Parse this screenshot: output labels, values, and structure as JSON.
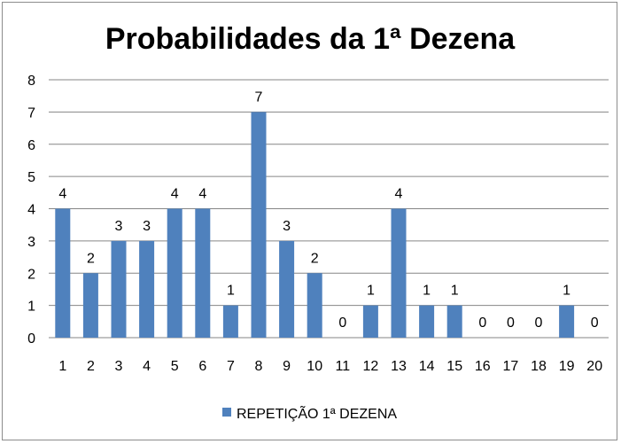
{
  "chart_data": {
    "type": "bar",
    "title": "Probabilidades da 1ª Dezena",
    "xlabel": "",
    "ylabel": "",
    "categories": [
      "1",
      "2",
      "3",
      "4",
      "5",
      "6",
      "7",
      "8",
      "9",
      "10",
      "11",
      "12",
      "13",
      "14",
      "15",
      "16",
      "17",
      "18",
      "19",
      "20"
    ],
    "series": [
      {
        "name": "REPETIÇÃO 1ª DEZENA",
        "values": [
          4,
          2,
          3,
          3,
          4,
          4,
          1,
          7,
          3,
          2,
          0,
          1,
          4,
          1,
          1,
          0,
          0,
          0,
          1,
          0
        ],
        "color": "#4F81BD"
      }
    ],
    "ylim": [
      0,
      8
    ],
    "yticks": [
      0,
      1,
      2,
      3,
      4,
      5,
      6,
      7,
      8
    ],
    "grid": true,
    "data_labels": true,
    "legend_position": "bottom"
  }
}
